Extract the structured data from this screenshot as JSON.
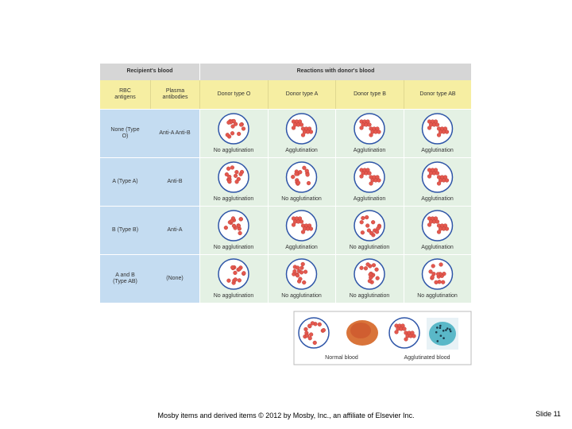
{
  "header": {
    "recipient": "Recipient's blood",
    "reactions": "Reactions with donor's blood"
  },
  "columns": [
    "RBC antigens",
    "Plasma antibodies",
    "Donor type O",
    "Donor type A",
    "Donor type B",
    "Donor type AB"
  ],
  "rows": [
    {
      "antigens": "None (Type O)",
      "antibodies": "Anti-A Anti-B",
      "results": [
        "No agglutination",
        "Agglutination",
        "Agglutination",
        "Agglutination"
      ]
    },
    {
      "antigens": "A (Type A)",
      "antibodies": "Anti-B",
      "results": [
        "No agglutination",
        "No agglutination",
        "Agglutination",
        "Agglutination"
      ]
    },
    {
      "antigens": "B (Type B)",
      "antibodies": "Anti-A",
      "results": [
        "No agglutination",
        "Agglutination",
        "No agglutination",
        "Agglutination"
      ]
    },
    {
      "antigens": "A and B (Type AB)",
      "antibodies": "(None)",
      "results": [
        "No agglutination",
        "No agglutination",
        "No agglutination",
        "No agglutination"
      ]
    }
  ],
  "legend": {
    "normal": "Normal blood",
    "agglutinated": "Agglutinated blood"
  },
  "footer": {
    "copyright": "Mosby items and derived items © 2012 by Mosby, Inc., an affiliate of Elsevier Inc.",
    "slide": "Slide 11"
  }
}
